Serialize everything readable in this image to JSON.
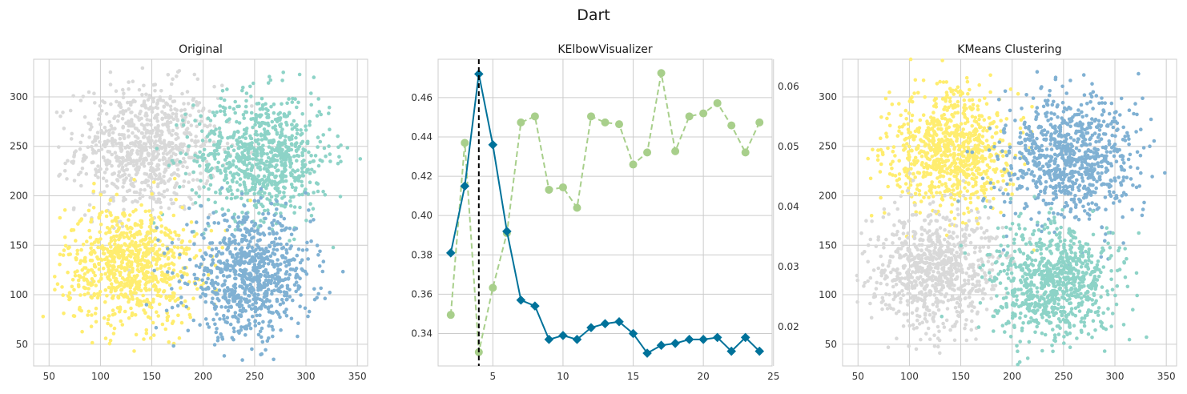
{
  "suptitle": "Dart",
  "colors": {
    "c0": "#d9d9d9",
    "c1": "#8dd3c7",
    "c2": "#ffed6f",
    "c3": "#80b1d3",
    "distortion": "#00729a",
    "fit_time": "#a8cf8b",
    "elbow": "#000000",
    "grid": "#cccccc",
    "frame": "#cccccc"
  },
  "chart_data": [
    {
      "type": "scatter",
      "title": "Original",
      "xlim": [
        35,
        360
      ],
      "ylim": [
        28,
        338
      ],
      "xticks": [
        50,
        100,
        150,
        200,
        250,
        300,
        350
      ],
      "yticks": [
        50,
        100,
        150,
        200,
        250,
        300
      ],
      "grid": true,
      "clusters": [
        {
          "color_key": "c0",
          "center": [
            145,
            248
          ],
          "spread": [
            34,
            32
          ],
          "count": 820
        },
        {
          "color_key": "c1",
          "center": [
            258,
            240
          ],
          "spread": [
            33,
            32
          ],
          "count": 820
        },
        {
          "color_key": "c2",
          "center": [
            130,
            130
          ],
          "spread": [
            32,
            30
          ],
          "count": 820
        },
        {
          "color_key": "c3",
          "center": [
            245,
            118
          ],
          "spread": [
            30,
            30
          ],
          "count": 820
        }
      ]
    },
    {
      "type": "line",
      "title": "KElbowVisualizer",
      "xlim": [
        1.1,
        24.9
      ],
      "ylim": [
        0.3235,
        0.4795
      ],
      "y2lim": [
        0.0135,
        0.0645
      ],
      "xticks": [
        5,
        10,
        15,
        20,
        25
      ],
      "yticks": [
        0.34,
        0.36,
        0.38,
        0.4,
        0.42,
        0.44,
        0.46
      ],
      "yticklabels": [
        "0.34",
        "0.36",
        "0.38",
        "0.40",
        "0.42",
        "0.44",
        "0.46"
      ],
      "y2ticks": [
        0.02,
        0.03,
        0.04,
        0.05,
        0.06
      ],
      "y2ticklabels": [
        "0.02",
        "0.03",
        "0.04",
        "0.05",
        "0.06"
      ],
      "grid": true,
      "elbow_x": 4,
      "x": [
        2,
        3,
        4,
        5,
        6,
        7,
        8,
        9,
        10,
        11,
        12,
        13,
        14,
        15,
        16,
        17,
        18,
        19,
        20,
        21,
        22,
        23,
        24
      ],
      "series": [
        {
          "color_key": "distortion",
          "axis": "left",
          "marker": "diamond",
          "dashed": false,
          "values": [
            0.381,
            0.415,
            0.472,
            0.436,
            0.392,
            0.357,
            0.354,
            0.337,
            0.339,
            0.337,
            0.343,
            0.345,
            0.346,
            0.34,
            0.33,
            0.334,
            0.335,
            0.337,
            0.337,
            0.338,
            0.331,
            0.338,
            0.331
          ]
        },
        {
          "color_key": "fit_time",
          "axis": "right",
          "marker": "circle",
          "dashed": false,
          "values": [
            0.022,
            0.0506,
            0.0158,
            0.0265,
            0.0356,
            0.054,
            0.055,
            0.0428,
            0.0432,
            0.0398,
            0.055,
            0.054,
            0.0537,
            0.047,
            0.049,
            0.0622,
            0.0492,
            0.055,
            0.0555,
            0.0572,
            0.0535,
            0.049,
            0.054
          ]
        }
      ]
    },
    {
      "type": "scatter",
      "title": "KMeans Clustering",
      "xlim": [
        35,
        360
      ],
      "ylim": [
        28,
        338
      ],
      "xticks": [
        50,
        100,
        150,
        200,
        250,
        300,
        350
      ],
      "yticks": [
        50,
        100,
        150,
        200,
        250,
        300
      ],
      "grid": true,
      "clusters": [
        {
          "color_key": "c2",
          "center": [
            140,
            245
          ],
          "spread": [
            30,
            30
          ],
          "count": 820
        },
        {
          "color_key": "c3",
          "center": [
            255,
            240
          ],
          "spread": [
            32,
            32
          ],
          "count": 820
        },
        {
          "color_key": "c0",
          "center": [
            125,
            125
          ],
          "spread": [
            30,
            30
          ],
          "count": 820
        },
        {
          "color_key": "c1",
          "center": [
            240,
            115
          ],
          "spread": [
            30,
            30
          ],
          "count": 820
        }
      ]
    }
  ]
}
